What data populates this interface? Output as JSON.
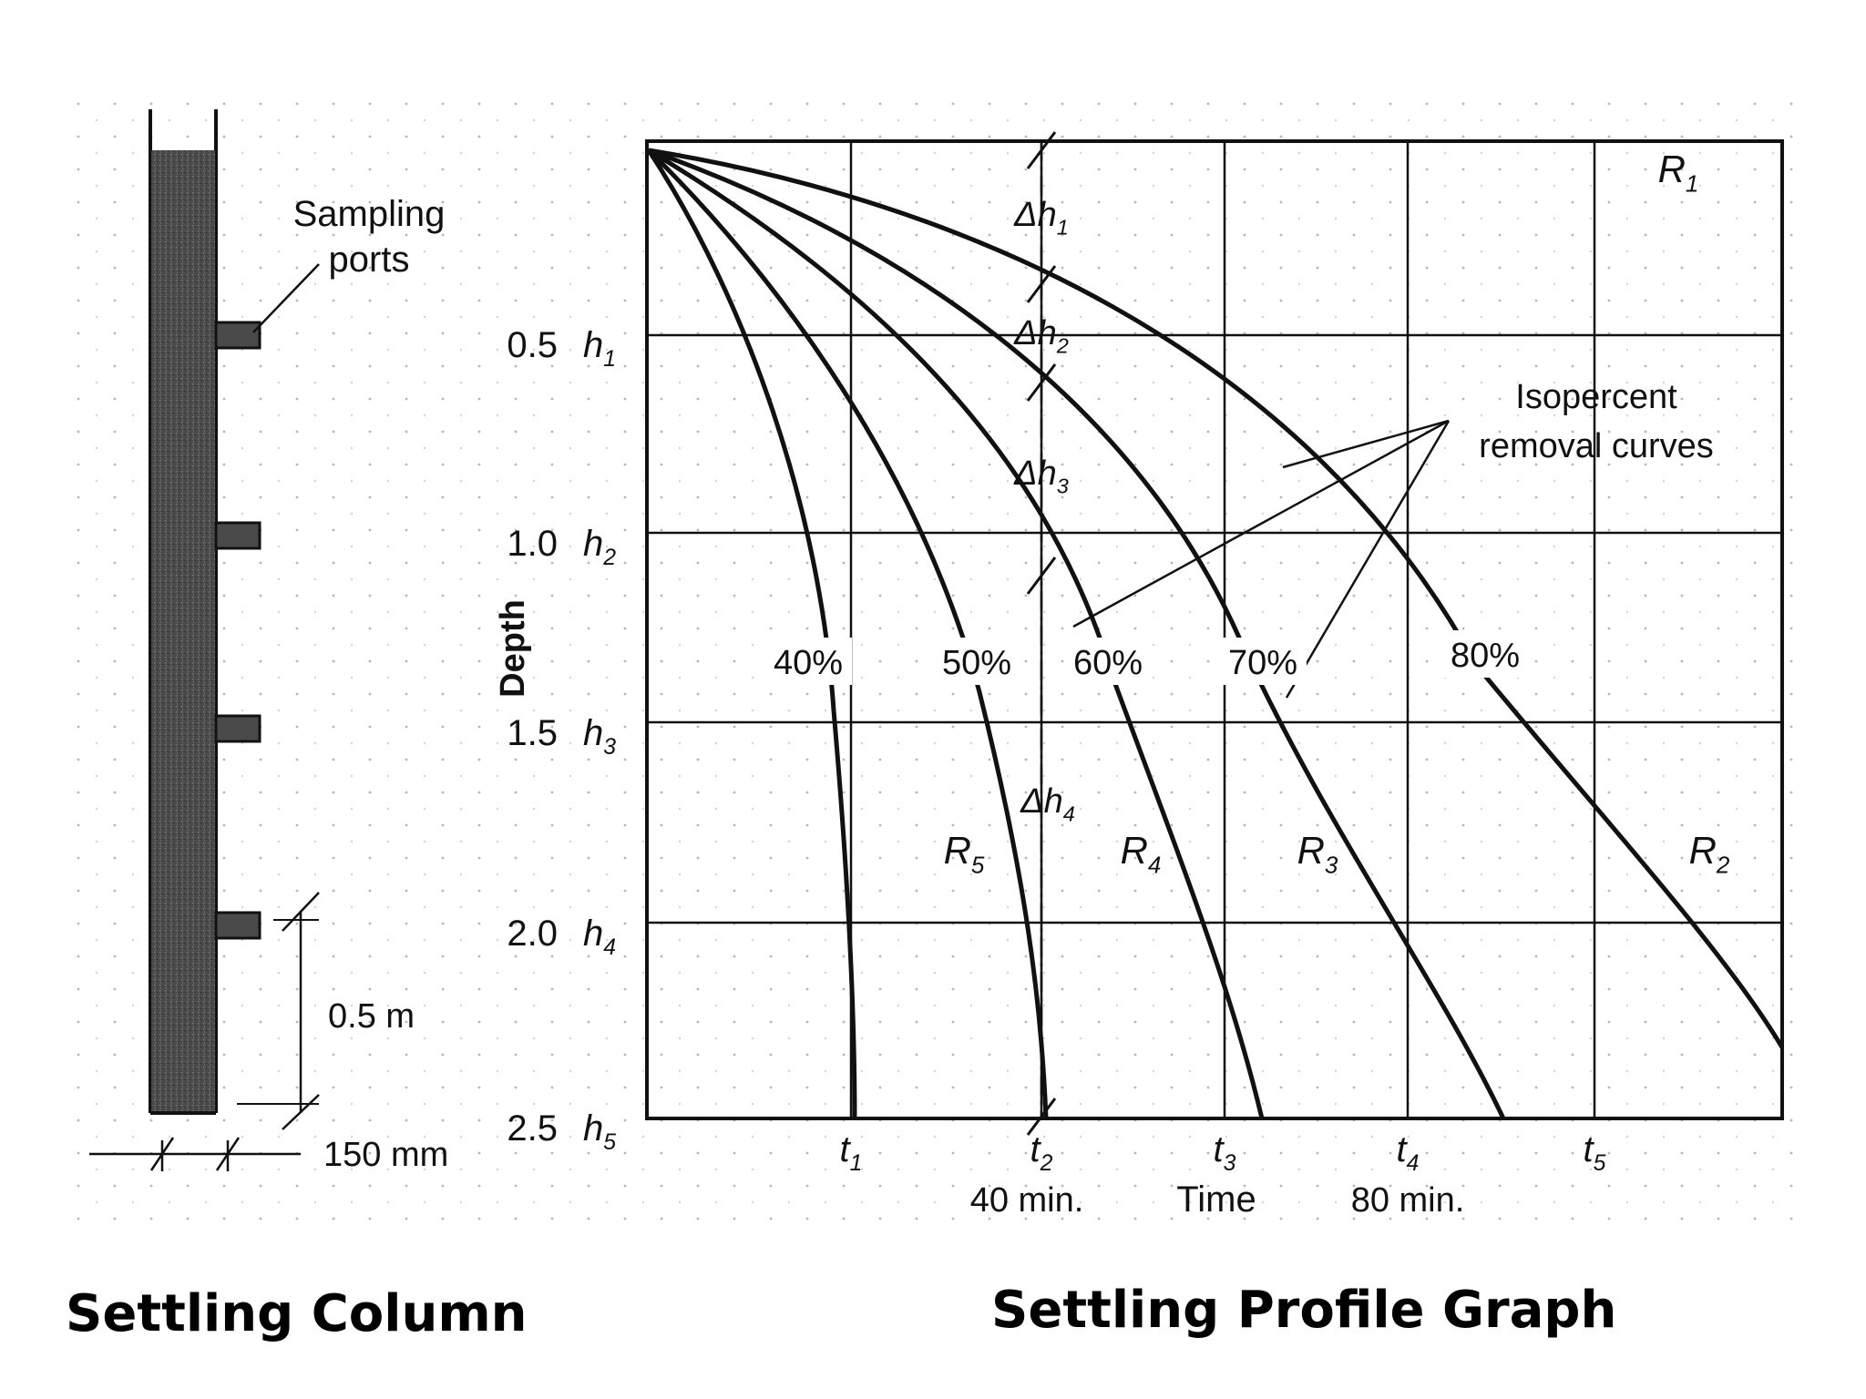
{
  "column": {
    "ports_label_line1": "Sampling",
    "ports_label_line2": "ports",
    "height_label": "0.5 m",
    "width_label": "150 mm"
  },
  "graph": {
    "y_axis_label": "Depth",
    "depth_ticks": [
      "0.5",
      "1.0",
      "1.5",
      "2.0",
      "2.5"
    ],
    "h_labels": [
      {
        "base": "h",
        "sub": "1"
      },
      {
        "base": "h",
        "sub": "2"
      },
      {
        "base": "h",
        "sub": "3"
      },
      {
        "base": "h",
        "sub": "4"
      },
      {
        "base": "h",
        "sub": "5"
      }
    ],
    "t_labels": [
      {
        "base": "t",
        "sub": "1"
      },
      {
        "base": "t",
        "sub": "2"
      },
      {
        "base": "t",
        "sub": "3"
      },
      {
        "base": "t",
        "sub": "4"
      },
      {
        "base": "t",
        "sub": "5"
      }
    ],
    "x_axis_label": "Time",
    "time_note_40": "40 min.",
    "time_note_80": "80 min.",
    "delta_h_labels": [
      {
        "base": "Δh",
        "sub": "1"
      },
      {
        "base": "Δh",
        "sub": "2"
      },
      {
        "base": "Δh",
        "sub": "3"
      },
      {
        "base": "Δh",
        "sub": "4"
      }
    ],
    "region_labels": [
      {
        "base": "R",
        "sub": "1"
      },
      {
        "base": "R",
        "sub": "2"
      },
      {
        "base": "R",
        "sub": "3"
      },
      {
        "base": "R",
        "sub": "4"
      },
      {
        "base": "R",
        "sub": "5"
      }
    ],
    "curve_labels": [
      "40%",
      "50%",
      "60%",
      "70%",
      "80%"
    ],
    "callout_line1": "Isopercent",
    "callout_line2": "removal curves"
  },
  "captions": {
    "left": "Settling Column",
    "right": "Settling Profile Graph"
  }
}
